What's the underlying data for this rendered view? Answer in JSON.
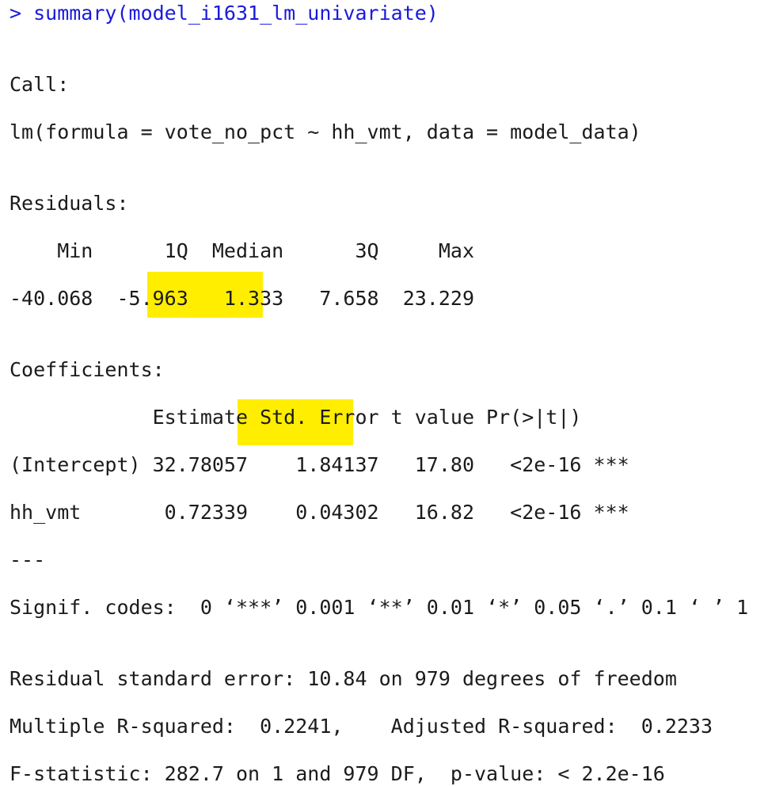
{
  "console": {
    "command": "> summary(model_i1631_lm_univariate)",
    "call_header": "Call:",
    "call_formula": "lm(formula = vote_no_pct ~ hh_vmt, data = model_data)",
    "residuals_header": "Residuals:",
    "residuals_labels": "    Min      1Q  Median      3Q     Max ",
    "residuals_values": "-40.068  -5.963   1.333   7.658  23.229 ",
    "coefficients_header": "Coefficients:",
    "coef_columns": "            Estimate Std. Error t value Pr(>|t|)    ",
    "coef_intercept": "(Intercept) 32.78057    1.84137   17.80   <2e-16 ***",
    "coef_hh_vmt": "hh_vmt       0.72339    0.04302   16.82   <2e-16 ***",
    "separator": "---",
    "signif_codes": "Signif. codes:  0 ‘***’ 0.001 ‘**’ 0.01 ‘*’ 0.05 ‘.’ 0.1 ‘ ’ 1",
    "residual_se": "Residual standard error: 10.84 on 979 degrees of freedom",
    "r_squared": "Multiple R-squared:  0.2241,\tAdjusted R-squared:  0.2233 ",
    "f_statistic": "F-statistic: 282.7 on 1 and 979 DF,  p-value: < 2.2e-16"
  },
  "colors": {
    "highlight": "#ffee00",
    "prompt": "#1a1adb",
    "text": "#1b1b1b"
  }
}
